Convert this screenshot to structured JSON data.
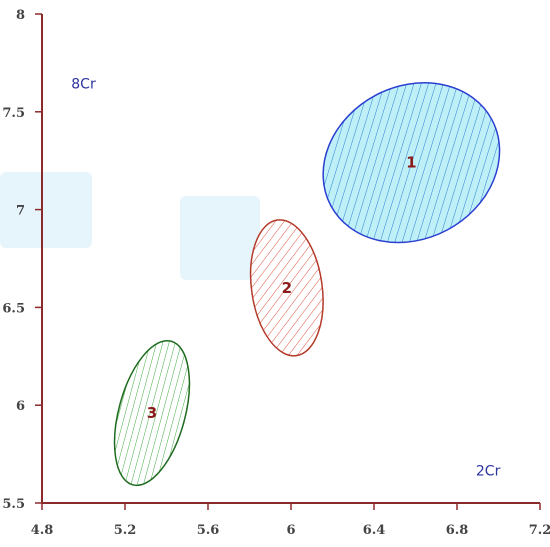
{
  "chart_data": {
    "type": "scatter",
    "title": "",
    "xlabel": "",
    "ylabel": "",
    "xlim": [
      4.8,
      7.2
    ],
    "ylim": [
      5.5,
      8
    ],
    "x_ticks": [
      "4.8",
      "5.2",
      "5.6",
      "6",
      "6.4",
      "6.8",
      "7.2"
    ],
    "y_ticks": [
      "5.5",
      "6",
      "6.5",
      "7",
      "7.5",
      "8"
    ],
    "annotations": [
      {
        "text": "8Cr",
        "x": 5.0,
        "y": 7.62
      },
      {
        "text": "2Cr",
        "x": 6.95,
        "y": 5.64
      }
    ],
    "clusters": [
      {
        "label": "1",
        "cx": 6.58,
        "cy": 7.24,
        "rx": 0.44,
        "ry": 0.39,
        "rotation": -28,
        "stroke": "#2b3fd1",
        "fill": "#bff0f8",
        "hatch": "diagonal"
      },
      {
        "label": "2",
        "cx": 5.98,
        "cy": 6.6,
        "rx": 0.17,
        "ry": 0.35,
        "rotation": -8,
        "stroke": "#b43a2a",
        "fill": "#ffffff",
        "hatch": "diagonal"
      },
      {
        "label": "3",
        "cx": 5.33,
        "cy": 5.96,
        "rx": 0.16,
        "ry": 0.38,
        "rotation": 15,
        "stroke": "#1f6b1f",
        "fill": "#ffffff",
        "hatch": "vertical"
      }
    ]
  }
}
